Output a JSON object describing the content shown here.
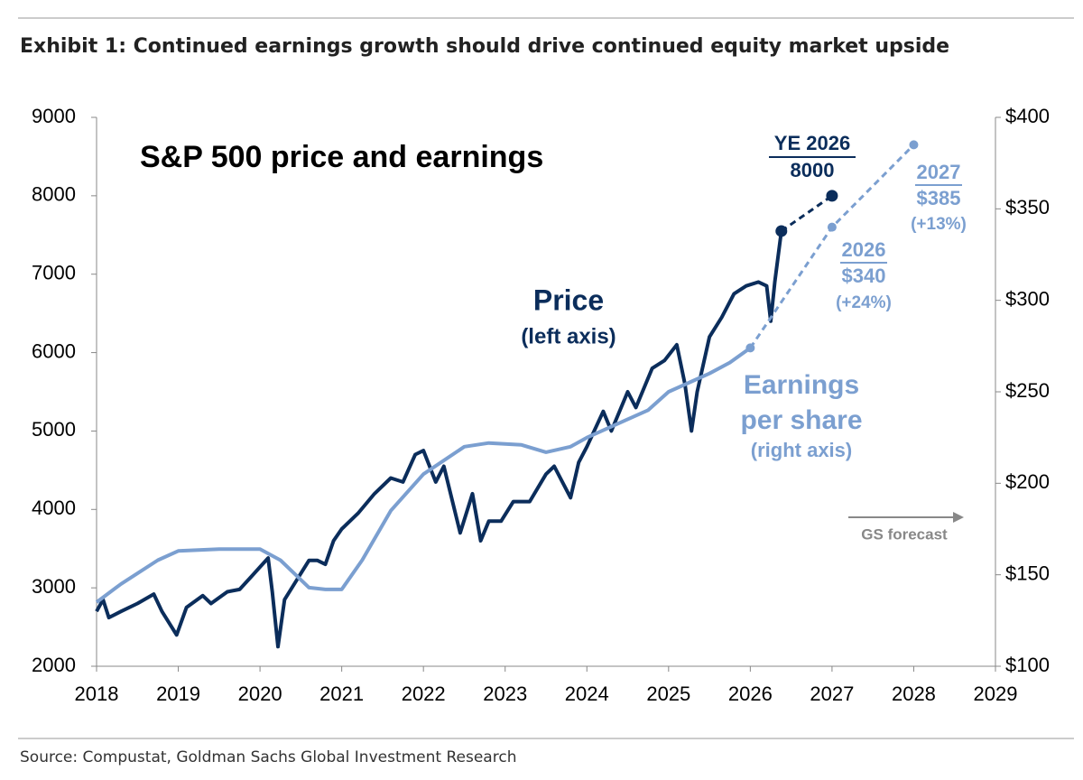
{
  "chart_data": {
    "type": "line",
    "header": "Exhibit 1: Continued earnings growth should drive continued equity market upside",
    "title": "S&P 500 price and earnings",
    "source": "Source: Compustat, Goldman Sachs Global Investment Research",
    "xlim": [
      2018,
      2029
    ],
    "xticks": [
      2018,
      2019,
      2020,
      2021,
      2022,
      2023,
      2024,
      2025,
      2026,
      2027,
      2028,
      2029
    ],
    "ylim": [
      2000,
      9000
    ],
    "yticks": [
      2000,
      3000,
      4000,
      5000,
      6000,
      7000,
      8000,
      9000
    ],
    "y2lim": [
      100,
      400
    ],
    "y2ticks": [
      {
        "value": 100,
        "label": "$100"
      },
      {
        "value": 150,
        "label": "$150"
      },
      {
        "value": 200,
        "label": "$200"
      },
      {
        "value": 250,
        "label": "$250"
      },
      {
        "value": 300,
        "label": "$300"
      },
      {
        "value": 350,
        "label": "$350"
      },
      {
        "value": 400,
        "label": "$400"
      }
    ],
    "series": [
      {
        "color": "#0b2d5b",
        "axis": "y",
        "dashed": false,
        "markers": false,
        "x": [
          2018.0,
          2018.08,
          2018.15,
          2018.3,
          2018.5,
          2018.7,
          2018.8,
          2018.98,
          2019.1,
          2019.3,
          2019.4,
          2019.6,
          2019.75,
          2019.9,
          2020.1,
          2020.15,
          2020.22,
          2020.3,
          2020.45,
          2020.6,
          2020.7,
          2020.8,
          2020.9,
          2021.0,
          2021.2,
          2021.4,
          2021.6,
          2021.75,
          2021.9,
          2022.0,
          2022.15,
          2022.25,
          2022.45,
          2022.6,
          2022.7,
          2022.8,
          2022.95,
          2023.1,
          2023.3,
          2023.5,
          2023.6,
          2023.8,
          2023.9,
          2024.0,
          2024.2,
          2024.3,
          2024.5,
          2024.6,
          2024.8,
          2024.95,
          2025.1,
          2025.2,
          2025.28,
          2025.35,
          2025.5,
          2025.65,
          2025.8,
          2025.95,
          2026.1,
          2026.2,
          2026.25,
          2026.3,
          2026.38
        ],
        "values": [
          2700,
          2850,
          2620,
          2700,
          2800,
          2920,
          2700,
          2400,
          2750,
          2900,
          2800,
          2950,
          2980,
          3150,
          3380,
          2950,
          2250,
          2850,
          3100,
          3350,
          3350,
          3300,
          3600,
          3750,
          3950,
          4200,
          4400,
          4350,
          4700,
          4750,
          4350,
          4550,
          3700,
          4200,
          3600,
          3850,
          3850,
          4100,
          4100,
          4450,
          4550,
          4150,
          4600,
          4800,
          5250,
          5000,
          5500,
          5300,
          5800,
          5900,
          6100,
          5600,
          5000,
          5500,
          6200,
          6450,
          6750,
          6850,
          6900,
          6850,
          6400,
          6900,
          7550
        ]
      },
      {
        "color": "#0b2d5b",
        "axis": "y",
        "dashed": true,
        "markers": true,
        "x": [
          2026.38,
          2027
        ],
        "values": [
          7550,
          8000
        ]
      },
      {
        "color": "#7b9fd0",
        "axis": "y2",
        "dashed": false,
        "markers": false,
        "x": [
          2018.0,
          2018.3,
          2018.75,
          2019.0,
          2019.5,
          2020.0,
          2020.25,
          2020.6,
          2020.8,
          2021.0,
          2021.25,
          2021.6,
          2022.0,
          2022.5,
          2022.8,
          2023.2,
          2023.5,
          2023.8,
          2024.0,
          2024.5,
          2024.75,
          2025.0,
          2025.5,
          2025.75,
          2026.0
        ],
        "values": [
          135,
          145,
          158,
          163,
          164,
          164,
          158,
          143,
          142,
          142,
          158,
          185,
          205,
          220,
          222,
          221,
          217,
          220,
          225,
          235,
          240,
          250,
          260,
          266,
          274
        ]
      },
      {
        "color": "#7b9fd0",
        "axis": "y2",
        "dashed": true,
        "markers": true,
        "x": [
          2026,
          2027,
          2028
        ],
        "values": [
          274,
          340,
          385
        ]
      }
    ],
    "annotations": [
      "YE 2026",
      "8000",
      "2027",
      "$385",
      "(+13%)",
      "2026",
      "$340",
      "(+24%)",
      "Price",
      "(left axis)",
      "Earnings",
      "per share",
      "(right axis)",
      "GS forecast"
    ]
  }
}
